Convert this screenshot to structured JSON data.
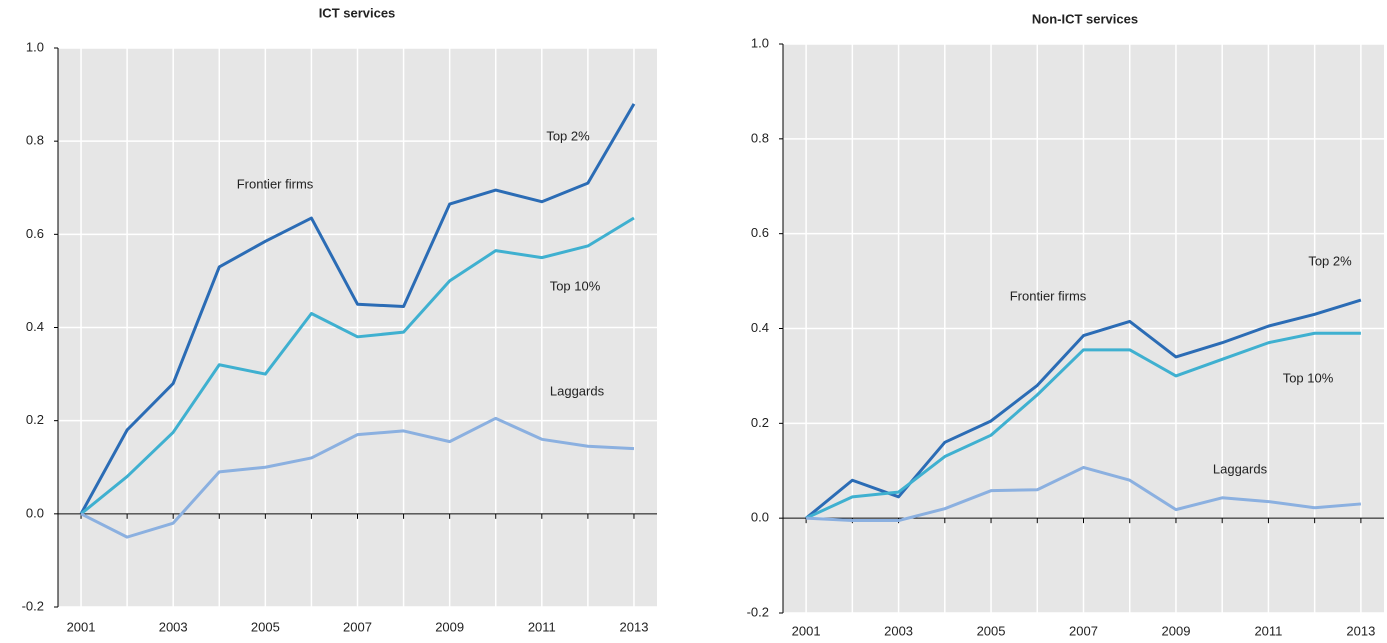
{
  "chart_data": [
    {
      "type": "line",
      "title": "ICT services",
      "x": [
        2001,
        2002,
        2003,
        2004,
        2005,
        2006,
        2007,
        2008,
        2009,
        2010,
        2011,
        2012,
        2013
      ],
      "xlim": [
        2000.5,
        2013.5
      ],
      "xticks": [
        2001,
        2003,
        2005,
        2007,
        2009,
        2011,
        2013
      ],
      "ylim": [
        -0.2,
        1
      ],
      "yticks": [
        -0.2,
        {
          "value": 0,
          "label": "0.0"
        },
        0.2,
        0.4,
        0.6,
        0.8,
        {
          "value": 1,
          "label": "1.0"
        }
      ],
      "grid": true,
      "annotations": [
        "Frontier firms"
      ],
      "series": [
        {
          "name": "Top 2%",
          "color": "#2b6cb5",
          "values": [
            0,
            0.18,
            0.28,
            0.53,
            0.585,
            0.635,
            0.45,
            0.445,
            0.665,
            0.695,
            0.67,
            0.71,
            0.88
          ]
        },
        {
          "name": "Top 10%",
          "color": "#3fb0d0",
          "values": [
            0,
            0.08,
            0.175,
            0.32,
            0.3,
            0.43,
            0.38,
            0.39,
            0.5,
            0.565,
            0.55,
            0.575,
            0.635
          ]
        },
        {
          "name": "Laggards",
          "color": "#8bb0e0",
          "values": [
            0,
            -0.05,
            -0.02,
            0.09,
            0.1,
            0.12,
            0.17,
            0.178,
            0.155,
            0.205,
            0.16,
            0.145,
            0.14
          ]
        }
      ]
    },
    {
      "type": "line",
      "title": "Non-ICT services",
      "x": [
        2001,
        2002,
        2003,
        2004,
        2005,
        2006,
        2007,
        2008,
        2009,
        2010,
        2011,
        2012,
        2013
      ],
      "xlim": [
        2000.5,
        2013.5
      ],
      "xticks": [
        2001,
        2003,
        2005,
        2007,
        2009,
        2011,
        2013
      ],
      "ylim": [
        -0.2,
        1
      ],
      "yticks": [
        -0.2,
        {
          "value": 0,
          "label": "0.0"
        },
        0.2,
        0.4,
        0.6,
        0.8,
        {
          "value": 1,
          "label": "1.0"
        }
      ],
      "grid": true,
      "annotations": [
        "Frontier firms"
      ],
      "series": [
        {
          "name": "Top 2%",
          "color": "#2b6cb5",
          "values": [
            0,
            0.08,
            0.045,
            0.16,
            0.205,
            0.28,
            0.385,
            0.415,
            0.34,
            0.37,
            0.405,
            0.43,
            0.46
          ]
        },
        {
          "name": "Top 10%",
          "color": "#3fb0d0",
          "values": [
            0,
            0.045,
            0.055,
            0.13,
            0.175,
            0.26,
            0.355,
            0.355,
            0.3,
            0.335,
            0.37,
            0.39,
            0.39
          ]
        },
        {
          "name": "Laggards",
          "color": "#8bb0e0",
          "values": [
            0,
            -0.005,
            -0.005,
            0.02,
            0.058,
            0.06,
            0.107,
            0.08,
            0.018,
            0.043,
            0.035,
            0.022,
            0.03
          ]
        }
      ]
    }
  ]
}
